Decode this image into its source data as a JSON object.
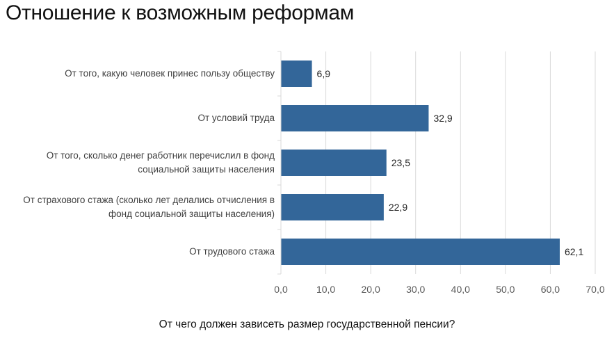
{
  "title": "Отношение к возможным реформам",
  "caption": "От чего должен зависеть размер государственной пенсии?",
  "colors": {
    "bar": "#336699",
    "grid": "#d9d9d9",
    "text": "#404040"
  },
  "chart_data": {
    "type": "bar",
    "orientation": "horizontal",
    "title": "Отношение к возможным реформам",
    "xlabel": "От чего должен зависеть размер государственной пенсии?",
    "ylabel": "",
    "categories": [
      "От того, какую человек принес пользу обществу",
      "От условий труда",
      "От того, сколько денег работник перечислил в фонд социальной защиты населения",
      "От страхового стажа (сколько лет делались отчисления в фонд социальной защиты населения)",
      "От трудового стажа"
    ],
    "category_lines": [
      [
        "От того, какую человек принес пользу обществу"
      ],
      [
        "От условий труда"
      ],
      [
        "От того, сколько денег работник перечислил в фонд",
        "социальной защиты населения"
      ],
      [
        "От страхового стажа (сколько лет делались отчисления в",
        "фонд социальной защиты населения)"
      ],
      [
        "От трудового стажа"
      ]
    ],
    "values": [
      6.9,
      32.9,
      23.5,
      22.9,
      62.1
    ],
    "value_labels": [
      "6,9",
      "32,9",
      "23,5",
      "22,9",
      "62,1"
    ],
    "xlim": [
      0,
      70
    ],
    "ticks": [
      0,
      10,
      20,
      30,
      40,
      50,
      60,
      70
    ],
    "tick_labels": [
      "0,0",
      "10,0",
      "20,0",
      "30,0",
      "40,0",
      "50,0",
      "60,0",
      "70,0"
    ],
    "grid": true,
    "legend": "none"
  }
}
